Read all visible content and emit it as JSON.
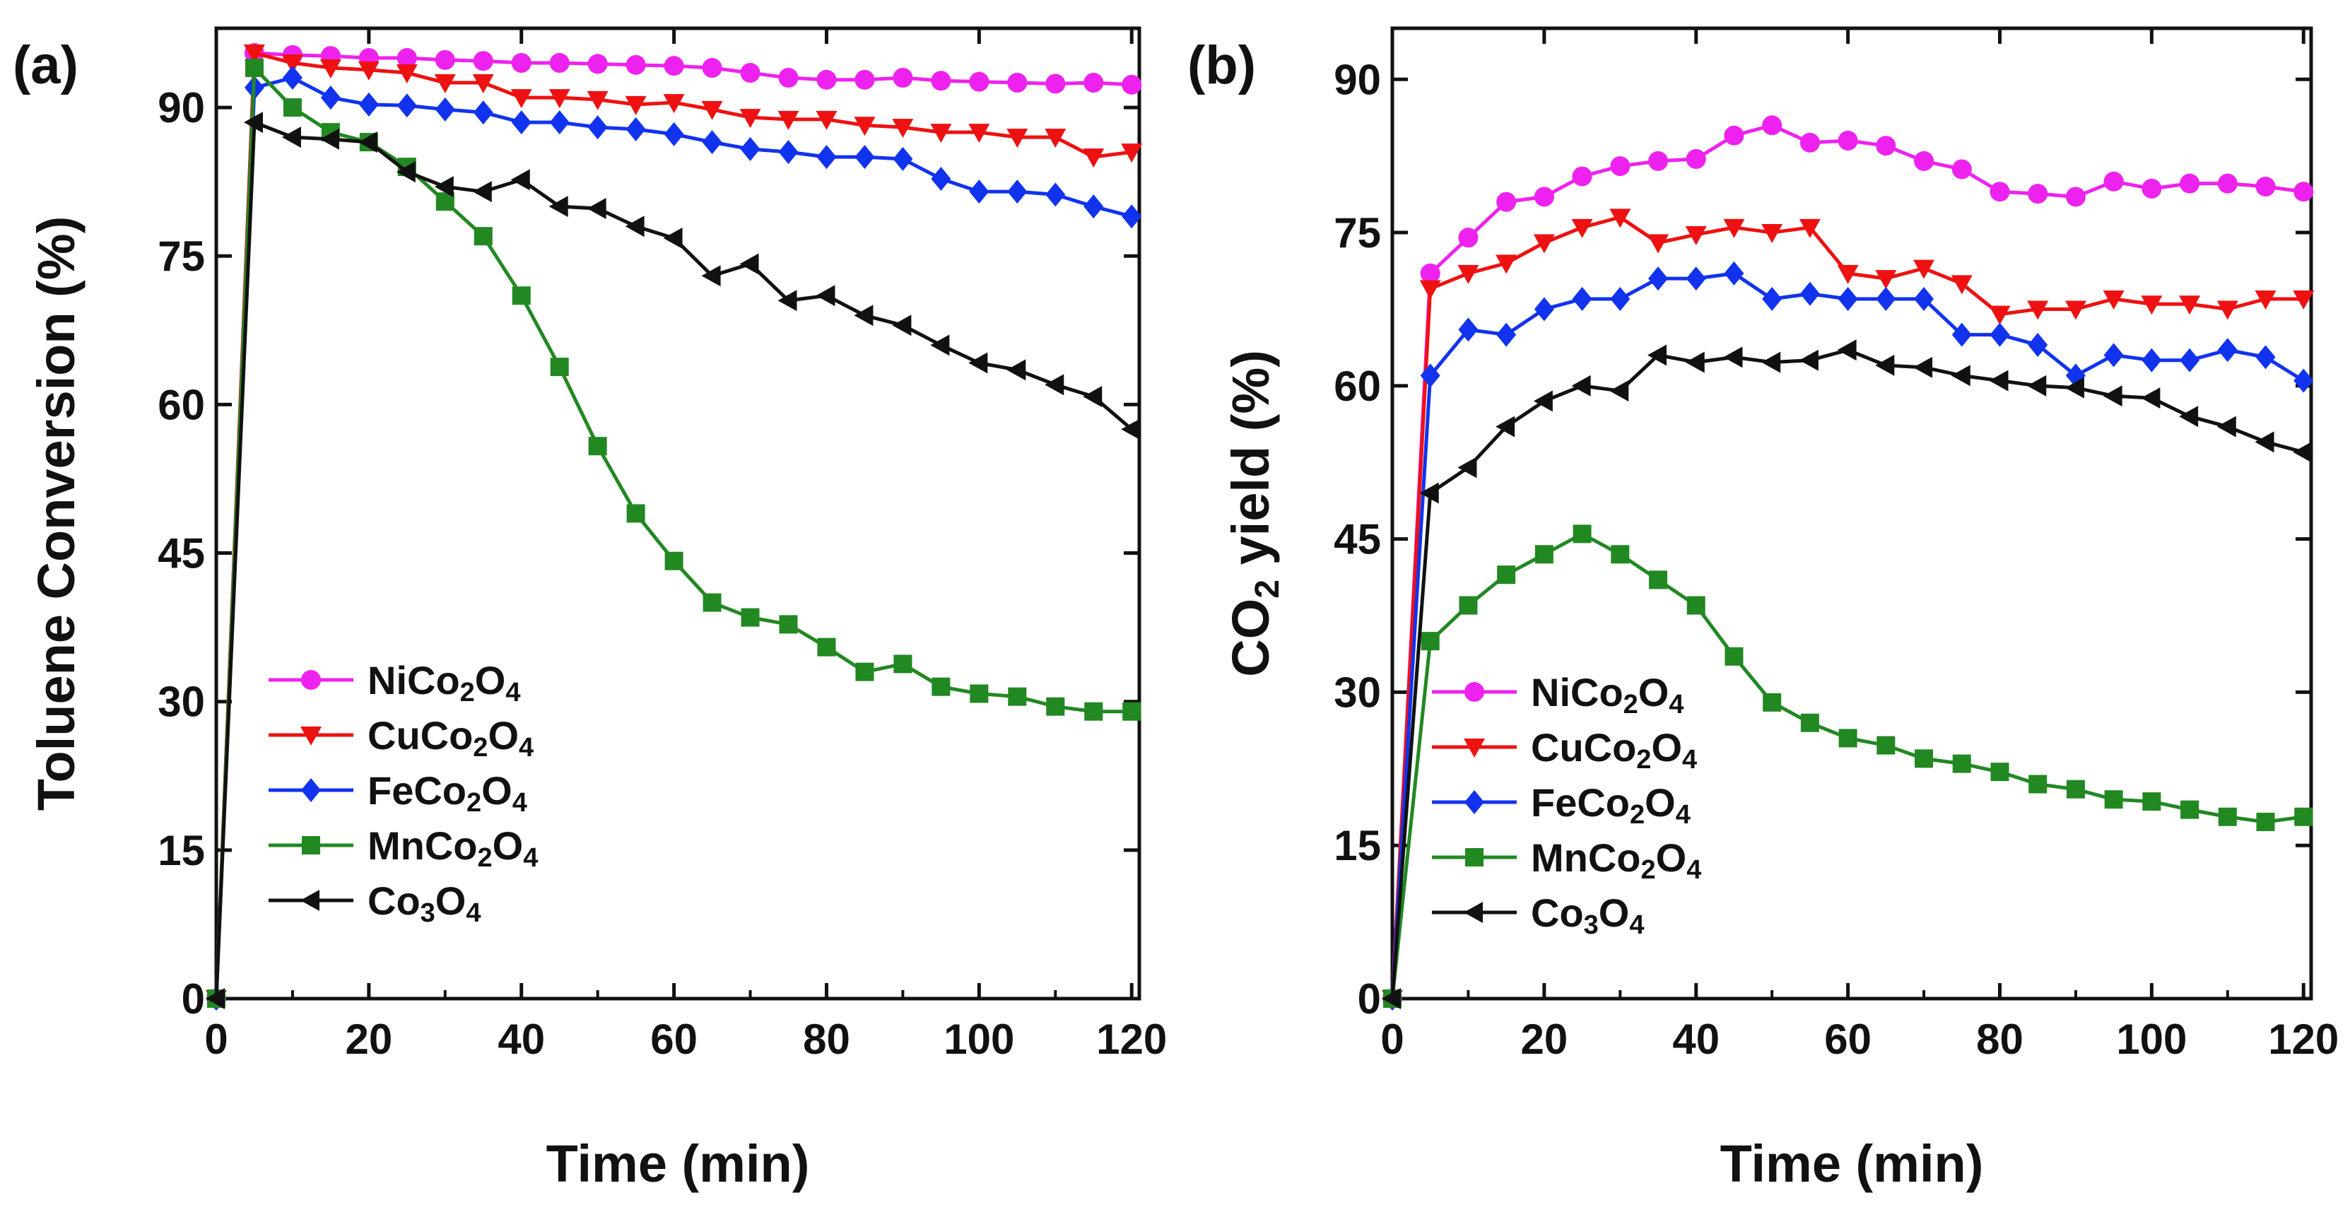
{
  "chart_data": [
    {
      "panel": "(a)",
      "type": "line",
      "xlabel": "Time (min)",
      "ylabel": "Toluene Conversion (%)",
      "xlim": [
        0,
        121
      ],
      "ylim": [
        0,
        98
      ],
      "xticks": [
        0,
        20,
        40,
        60,
        80,
        100,
        120
      ],
      "yticks": [
        0,
        15,
        30,
        45,
        60,
        75,
        90
      ],
      "x": [
        0,
        5,
        10,
        15,
        20,
        25,
        30,
        35,
        40,
        45,
        50,
        55,
        60,
        65,
        70,
        75,
        80,
        85,
        90,
        95,
        100,
        105,
        110,
        115,
        120
      ],
      "series": [
        {
          "name": "NiCo2O4",
          "label_main": "NiCo",
          "label_sub1": "2",
          "label_mid": "O",
          "label_sub2": "4",
          "color": "#ee22ee",
          "marker": "circle",
          "values": [
            0,
            95.5,
            95.3,
            95.2,
            95.0,
            95.0,
            94.8,
            94.7,
            94.5,
            94.5,
            94.4,
            94.3,
            94.2,
            94.0,
            93.5,
            93.0,
            92.8,
            92.8,
            93.0,
            92.7,
            92.6,
            92.5,
            92.4,
            92.5,
            92.3
          ]
        },
        {
          "name": "CuCo2O4",
          "label_main": "CuCo",
          "label_sub1": "2",
          "label_mid": "O",
          "label_sub2": "4",
          "color": "#ee1111",
          "marker": "triangle-down",
          "values": [
            0,
            95.5,
            94.5,
            94.0,
            93.8,
            93.5,
            92.5,
            92.5,
            91.0,
            91.0,
            90.8,
            90.3,
            90.5,
            89.8,
            89.0,
            88.8,
            88.8,
            88.2,
            88.0,
            87.5,
            87.5,
            87.0,
            87.0,
            85.0,
            85.5
          ]
        },
        {
          "name": "FeCo2O4",
          "label_main": "FeCo",
          "label_sub1": "2",
          "label_mid": "O",
          "label_sub2": "4",
          "color": "#1133ee",
          "marker": "diamond",
          "values": [
            0,
            92.0,
            93.0,
            91.0,
            90.3,
            90.2,
            89.8,
            89.5,
            88.5,
            88.5,
            88.0,
            87.8,
            87.3,
            86.5,
            85.8,
            85.5,
            85.0,
            85.0,
            84.8,
            82.8,
            81.5,
            81.5,
            81.2,
            80.0,
            79.0
          ]
        },
        {
          "name": "MnCo2O4",
          "label_main": "MnCo",
          "label_sub1": "2",
          "label_mid": "O",
          "label_sub2": "4",
          "color": "#228822",
          "marker": "square",
          "values": [
            0,
            94.0,
            90.0,
            87.5,
            86.5,
            84.0,
            80.5,
            77.0,
            71.0,
            63.8,
            55.8,
            49.0,
            44.2,
            40.0,
            38.5,
            37.8,
            35.5,
            33.0,
            33.8,
            31.5,
            30.8,
            30.5,
            29.5,
            29.0,
            29.0
          ]
        },
        {
          "name": "Co3O4",
          "label_main": "Co",
          "label_sub1": "3",
          "label_mid": "O",
          "label_sub2": "4",
          "color": "#111111",
          "marker": "triangle-left",
          "values": [
            0,
            88.5,
            87.0,
            86.8,
            86.5,
            83.5,
            82.0,
            81.5,
            82.7,
            80.0,
            79.8,
            78.0,
            76.8,
            73.0,
            74.2,
            70.5,
            71.0,
            69.0,
            68.0,
            66.0,
            64.2,
            63.5,
            62.0,
            60.8,
            57.5
          ]
        }
      ]
    },
    {
      "panel": "(b)",
      "type": "line",
      "xlabel": "Time (min)",
      "ylabel_main": "CO",
      "ylabel_sub": "2",
      "ylabel_rest": " yield (%)",
      "xlim": [
        0,
        121
      ],
      "ylim": [
        0,
        95
      ],
      "xticks": [
        0,
        20,
        40,
        60,
        80,
        100,
        120
      ],
      "yticks": [
        0,
        15,
        30,
        45,
        60,
        75,
        90
      ],
      "x": [
        0,
        5,
        10,
        15,
        20,
        25,
        30,
        35,
        40,
        45,
        50,
        55,
        60,
        65,
        70,
        75,
        80,
        85,
        90,
        95,
        100,
        105,
        110,
        115,
        120
      ],
      "series": [
        {
          "name": "NiCo2O4",
          "label_main": "NiCo",
          "label_sub1": "2",
          "label_mid": "O",
          "label_sub2": "4",
          "color": "#ee22ee",
          "marker": "circle",
          "values": [
            0,
            71.0,
            74.5,
            78.0,
            78.5,
            80.5,
            81.5,
            82.0,
            82.2,
            84.5,
            85.5,
            83.8,
            84.0,
            83.5,
            82.0,
            81.2,
            79.0,
            78.8,
            78.5,
            80.0,
            79.3,
            79.8,
            79.8,
            79.5,
            79.0
          ]
        },
        {
          "name": "CuCo2O4",
          "label_main": "CuCo",
          "label_sub1": "2",
          "label_mid": "O",
          "label_sub2": "4",
          "color": "#ee1111",
          "marker": "triangle-down",
          "values": [
            0,
            69.5,
            71.0,
            72.0,
            74.0,
            75.5,
            76.5,
            74.0,
            74.8,
            75.5,
            75.0,
            75.5,
            71.0,
            70.5,
            71.5,
            70.0,
            67.0,
            67.5,
            67.5,
            68.5,
            68.0,
            68.0,
            67.5,
            68.5,
            68.5
          ]
        },
        {
          "name": "FeCo2O4",
          "label_main": "FeCo",
          "label_sub1": "2",
          "label_mid": "O",
          "label_sub2": "4",
          "color": "#1133ee",
          "marker": "diamond",
          "values": [
            0,
            61.0,
            65.5,
            65.0,
            67.5,
            68.5,
            68.5,
            70.5,
            70.5,
            71.0,
            68.5,
            69.0,
            68.5,
            68.5,
            68.5,
            65.0,
            65.0,
            64.0,
            61.0,
            63.0,
            62.5,
            62.5,
            63.5,
            62.8,
            60.5
          ]
        },
        {
          "name": "MnCo2O4",
          "label_main": "MnCo",
          "label_sub1": "2",
          "label_mid": "O",
          "label_sub2": "4",
          "color": "#228822",
          "marker": "square",
          "values": [
            0,
            35.0,
            38.5,
            41.5,
            43.5,
            45.5,
            43.5,
            41.0,
            38.5,
            33.5,
            29.0,
            27.0,
            25.5,
            24.8,
            23.5,
            23.0,
            22.2,
            21.0,
            20.5,
            19.5,
            19.3,
            18.5,
            17.8,
            17.3,
            17.8
          ]
        },
        {
          "name": "Co3O4",
          "label_main": "Co",
          "label_sub1": "3",
          "label_mid": "O",
          "label_sub2": "4",
          "color": "#111111",
          "marker": "triangle-left",
          "values": [
            0,
            49.5,
            52.0,
            56.0,
            58.5,
            60.0,
            59.5,
            63.0,
            62.3,
            62.8,
            62.3,
            62.5,
            63.5,
            62.0,
            61.8,
            61.0,
            60.5,
            60.0,
            59.8,
            59.0,
            58.8,
            57.0,
            56.0,
            54.5,
            53.5
          ]
        }
      ]
    }
  ]
}
